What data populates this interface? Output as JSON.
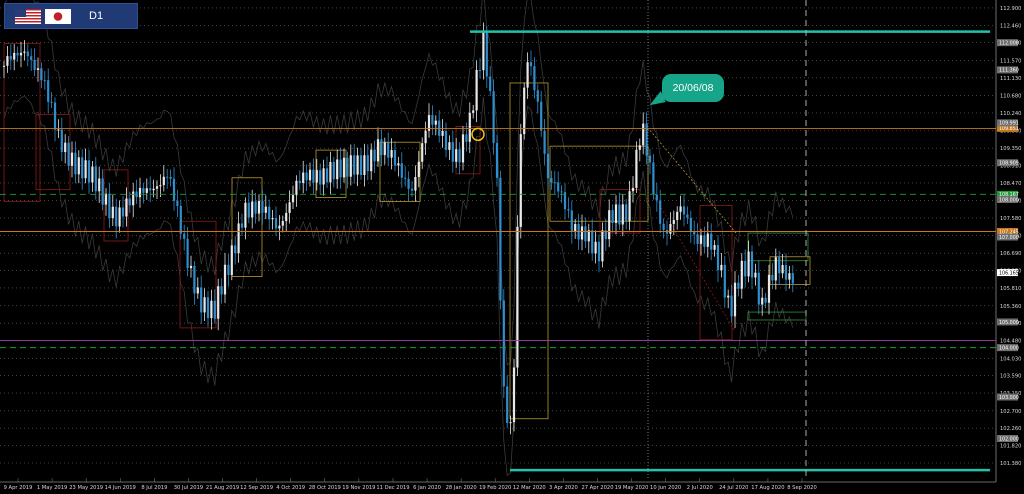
{
  "header": {
    "timeframe": "D1",
    "flag_base": "us-flag-icon",
    "flag_quote": "japan-flag-icon"
  },
  "callout": {
    "text": "20/06/08"
  },
  "colors": {
    "background": "#000000",
    "grid": "#6e6e6e",
    "teal_level": "#22c1aa",
    "orange_level": "#c8781e",
    "green_dashed": "#1f9a3a",
    "purple_level": "#9a40b0",
    "candle_up": "#e8e8e8",
    "candle_down": "#2e8fd0",
    "box_gold": "#b69a2a",
    "box_red": "#8c1a1a",
    "axis_text": "#d8d8d8"
  },
  "chart_data": {
    "type": "candlestick",
    "title": "",
    "xlabel": "",
    "ylabel": "",
    "ylim": [
      101.0,
      113.1
    ],
    "y_ticks": [
      "112.900",
      "112.460",
      "112.020",
      "111.570",
      "111.130",
      "110.680",
      "110.240",
      "109.800",
      "109.350",
      "108.910",
      "108.470",
      "108.020",
      "107.580",
      "107.140",
      "106.690",
      "106.250",
      "105.810",
      "105.360",
      "104.920",
      "104.480",
      "104.030",
      "103.590",
      "103.150",
      "102.700",
      "102.260",
      "101.820",
      "101.380"
    ],
    "y_tick_values": [
      112.9,
      112.46,
      112.02,
      111.57,
      111.13,
      110.68,
      110.24,
      109.8,
      109.35,
      108.91,
      108.47,
      108.02,
      107.58,
      107.14,
      106.69,
      106.25,
      105.81,
      105.36,
      104.92,
      104.48,
      104.03,
      103.59,
      103.15,
      102.7,
      102.26,
      101.82,
      101.38
    ],
    "x_ticks": [
      "9 Apr 2019",
      "1 May 2019",
      "23 May 2019",
      "14 Jun 2019",
      "8 Jul 2019",
      "30 Jul 2019",
      "21 Aug 2019",
      "12 Sep 2019",
      "4 Oct 2019",
      "28 Oct 2019",
      "19 Nov 2019",
      "11 Dec 2019",
      "6 Jan 2020",
      "28 Jan 2020",
      "19 Feb 2020",
      "12 Mar 2020",
      "3 Apr 2020",
      "27 Apr 2020",
      "19 May 2020",
      "10 Jun 2020",
      "2 Jul 2020",
      "24 Jul 2020",
      "17 Aug 2020",
      "8 Sep 2020"
    ],
    "price_tags": [
      {
        "value": 112.02,
        "label": "112.008",
        "color": "#6e6e6e"
      },
      {
        "value": 111.33,
        "label": "111.360",
        "color": "#6e6e6e"
      },
      {
        "value": 109.85,
        "label": "109.851",
        "color": "#c8781e"
      },
      {
        "value": 109.99,
        "label": "109.991",
        "color": "#6e6e6e"
      },
      {
        "value": 108.98,
        "label": "108.909",
        "color": "#6e6e6e"
      },
      {
        "value": 108.18,
        "label": "108.167",
        "color": "#1f9a3a"
      },
      {
        "value": 108.05,
        "label": "108.000",
        "color": "#6e6e6e"
      },
      {
        "value": 107.24,
        "label": "107.245",
        "color": "#c8781e"
      },
      {
        "value": 107.1,
        "label": "107.000",
        "color": "#6e6e6e"
      },
      {
        "value": 106.2,
        "label": "106.165",
        "color": "#ffffff"
      },
      {
        "value": 104.95,
        "label": "105.000",
        "color": "#6e6e6e"
      },
      {
        "value": 104.3,
        "label": "104.000",
        "color": "#6e6e6e"
      },
      {
        "value": 103.05,
        "label": "103.000",
        "color": "#6e6e6e"
      },
      {
        "value": 102.0,
        "label": "102.000",
        "color": "#6e6e6e"
      }
    ],
    "levels": [
      {
        "name": "teal-high",
        "value": 112.3,
        "color": "#22c1aa",
        "style": "solid"
      },
      {
        "name": "teal-low",
        "value": 101.2,
        "color": "#22c1aa",
        "style": "solid"
      },
      {
        "name": "orange-upper",
        "value": 109.85,
        "color": "#c8781e",
        "style": "solid"
      },
      {
        "name": "orange-mid",
        "value": 107.24,
        "color": "#c8781e",
        "style": "solid"
      },
      {
        "name": "green-upper",
        "value": 108.18,
        "color": "#1f9a3a",
        "style": "dashed"
      },
      {
        "name": "green-lower",
        "value": 104.3,
        "color": "#1f9a3a",
        "style": "dashed"
      },
      {
        "name": "purple",
        "value": 104.48,
        "color": "#9a40b0",
        "style": "solid"
      }
    ]
  }
}
